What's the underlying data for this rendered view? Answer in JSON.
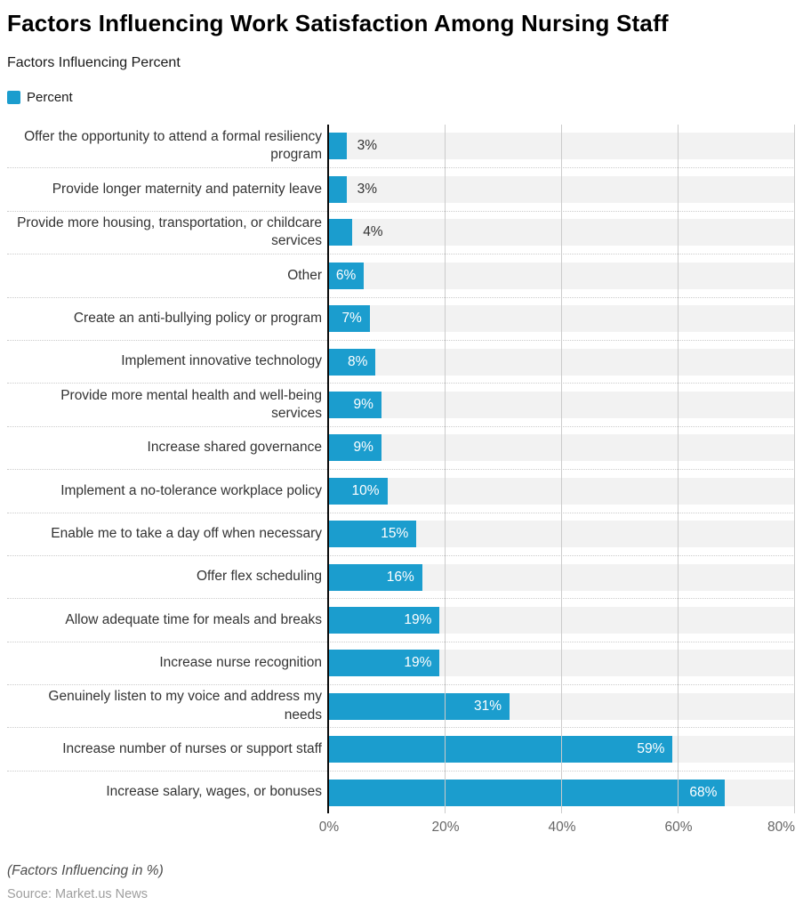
{
  "header": {
    "title": "Factors Influencing Work Satisfaction Among Nursing Staff",
    "subtitle": "Factors Influencing Percent"
  },
  "legend": {
    "items": [
      {
        "label": "Percent",
        "color": "#1b9dce"
      }
    ]
  },
  "chart_data": {
    "type": "bar",
    "orientation": "horizontal",
    "title": "Factors Influencing Work Satisfaction Among Nursing Staff",
    "subtitle": "Factors Influencing Percent",
    "categories": [
      "Offer the opportunity to attend a formal resiliency program",
      "Provide longer maternity and paternity leave",
      "Provide more housing, transportation, or childcare services",
      "Other",
      "Create an anti-bullying policy or program",
      "Implement innovative technology",
      "Provide more mental health and well-being services",
      "Increase shared governance",
      "Implement a no-tolerance workplace policy",
      "Enable me to take a day off when necessary",
      "Offer flex scheduling",
      "Allow adequate time for meals and breaks",
      "Increase nurse recognition",
      "Genuinely listen to my voice and address my needs",
      "Increase number of nurses or support staff",
      "Increase salary, wages, or bonuses"
    ],
    "series": [
      {
        "name": "Percent",
        "values": [
          3,
          3,
          4,
          6,
          7,
          8,
          9,
          9,
          10,
          15,
          16,
          19,
          19,
          31,
          59,
          68
        ]
      }
    ],
    "value_suffix": "%",
    "xlim": [
      0,
      80
    ],
    "x_ticks": [
      "0%",
      "20%",
      "40%",
      "60%",
      "80%"
    ],
    "grid": true,
    "legend_position": "top-left",
    "inside_label_min_value": 6
  },
  "footer": {
    "note": "(Factors Influencing in %)",
    "source": "Source: Market.us News"
  },
  "colors": {
    "bar": "#1b9dce",
    "row_band": "#f2f2f2",
    "gridline": "#cbcbcb",
    "axis_line": "#0a0a0a",
    "separator": "#cccccc"
  }
}
